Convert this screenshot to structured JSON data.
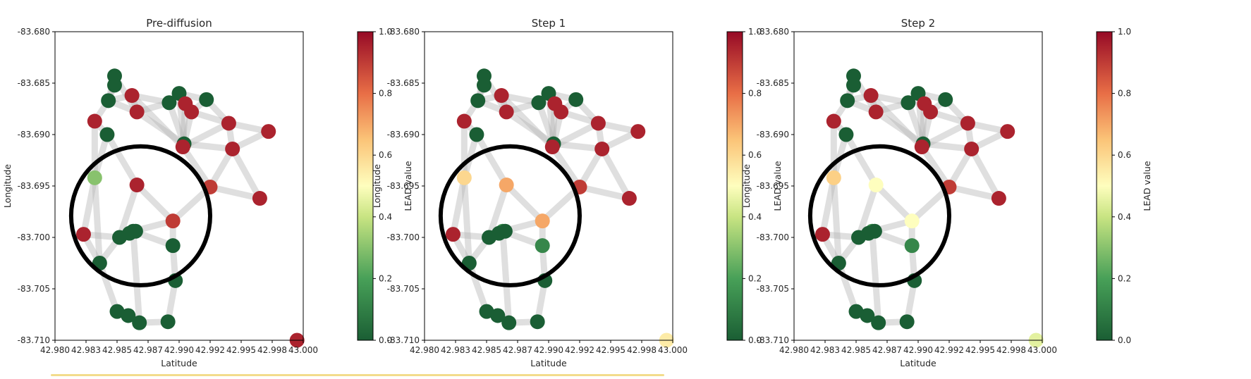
{
  "chart_data": [
    {
      "type": "scatter",
      "title": "Pre-diffusion",
      "xlabel": "Latitude",
      "ylabel": "Longitude",
      "xlim": [
        42.98,
        43.0
      ],
      "ylim": [
        -83.71,
        -83.68
      ],
      "xticks": [
        "42.980",
        "42.983",
        "42.985",
        "42.987",
        "42.990",
        "42.992",
        "42.995",
        "42.998",
        "43.000"
      ],
      "yticks": [
        "-83.680",
        "-83.685",
        "-83.690",
        "-83.695",
        "-83.700",
        "-83.705",
        "-83.710"
      ],
      "colorbar": {
        "label": "LEAD value",
        "range": [
          0.0,
          1.0
        ],
        "ticks": [
          "0.0",
          "0.2",
          "0.4",
          "0.6",
          "0.8",
          "1.0"
        ],
        "colormap": "RdYlGn_r"
      },
      "annotation": "black circle",
      "lead_values": [
        0.0,
        0.0,
        0.0,
        0.0,
        0.95,
        0.95,
        0.95,
        0.0,
        0.0,
        0.0,
        0.95,
        0.95,
        0.0,
        0.95,
        0.95,
        0.95,
        0.95,
        0.95,
        0.3,
        0.95,
        0.9,
        0.9,
        0.95,
        0.0,
        0.0,
        0.0,
        0.0,
        0.0,
        0.0,
        0.0,
        0.0,
        0.0,
        0.0,
        0.0,
        0.95
      ]
    },
    {
      "type": "scatter",
      "title": "Step 1",
      "xlabel": "Latitude",
      "ylabel": "Longitude",
      "xlim": [
        42.98,
        43.0
      ],
      "ylim": [
        -83.71,
        -83.68
      ],
      "xticks": [
        "42.980",
        "42.983",
        "42.985",
        "42.987",
        "42.990",
        "42.992",
        "42.995",
        "42.998",
        "43.000"
      ],
      "yticks": [
        "-83.680",
        "-83.685",
        "-83.690",
        "-83.695",
        "-83.700",
        "-83.705",
        "-83.710"
      ],
      "colorbar": {
        "label": "LEAD value",
        "range": [
          0.0,
          1.0
        ],
        "ticks": [
          "0.0",
          "0.2",
          "0.4",
          "0.6",
          "0.8",
          "1.0"
        ],
        "colormap": "RdYlGn_r"
      },
      "annotation": "black circle",
      "lead_values": [
        0.0,
        0.0,
        0.0,
        0.0,
        0.95,
        0.95,
        0.95,
        0.0,
        0.0,
        0.0,
        0.95,
        0.95,
        0.0,
        0.95,
        0.95,
        0.95,
        0.95,
        0.95,
        0.6,
        0.7,
        0.9,
        0.7,
        0.95,
        0.0,
        0.15,
        0.12,
        0.0,
        0.0,
        0.0,
        0.0,
        0.0,
        0.0,
        0.0,
        0.0,
        0.55
      ]
    },
    {
      "type": "scatter",
      "title": "Step 2",
      "xlabel": "Latitude",
      "ylabel": "Longitude",
      "xlim": [
        42.98,
        43.0
      ],
      "ylim": [
        -83.71,
        -83.68
      ],
      "xticks": [
        "42.980",
        "42.983",
        "42.985",
        "42.987",
        "42.990",
        "42.992",
        "42.995",
        "42.998",
        "43.000"
      ],
      "yticks": [
        "-83.680",
        "-83.685",
        "-83.690",
        "-83.695",
        "-83.700",
        "-83.705",
        "-83.710"
      ],
      "colorbar": {
        "label": "LEAD value",
        "range": [
          0.0,
          1.0
        ],
        "ticks": [
          "0.0",
          "0.2",
          "0.4",
          "0.6",
          "0.8",
          "1.0"
        ],
        "colormap": "RdYlGn_r"
      },
      "annotation": "black circle",
      "lead_values": [
        0.0,
        0.0,
        0.0,
        0.0,
        0.95,
        0.95,
        0.95,
        0.0,
        0.0,
        0.0,
        0.95,
        0.95,
        0.0,
        0.95,
        0.95,
        0.95,
        0.95,
        0.95,
        0.62,
        0.5,
        0.9,
        0.5,
        0.95,
        0.0,
        0.15,
        0.12,
        0.0,
        0.0,
        0.0,
        0.0,
        0.0,
        0.0,
        0.0,
        0.0,
        0.45
      ]
    }
  ],
  "nodes": [
    {
      "x": 42.9848,
      "y": -83.6843
    },
    {
      "x": 42.9848,
      "y": -83.6852
    },
    {
      "x": 42.9843,
      "y": -83.6867
    },
    {
      "x": 42.9892,
      "y": -83.6869
    },
    {
      "x": 42.9862,
      "y": -83.6862
    },
    {
      "x": 42.9866,
      "y": -83.6878
    },
    {
      "x": 42.9832,
      "y": -83.6887
    },
    {
      "x": 42.9842,
      "y": -83.69
    },
    {
      "x": 42.99,
      "y": -83.686
    },
    {
      "x": 42.9922,
      "y": -83.6866
    },
    {
      "x": 42.9905,
      "y": -83.687
    },
    {
      "x": 42.991,
      "y": -83.6878
    },
    {
      "x": 42.9904,
      "y": -83.6909
    },
    {
      "x": 42.9903,
      "y": -83.6912
    },
    {
      "x": 42.994,
      "y": -83.6889
    },
    {
      "x": 42.9943,
      "y": -83.6914
    },
    {
      "x": 42.9972,
      "y": -83.6897
    },
    {
      "x": 42.9965,
      "y": -83.6962
    },
    {
      "x": 42.9832,
      "y": -83.6942
    },
    {
      "x": 42.9866,
      "y": -83.6949
    },
    {
      "x": 42.9925,
      "y": -83.6951
    },
    {
      "x": 42.9895,
      "y": -83.6984
    },
    {
      "x": 42.9823,
      "y": -83.6997
    },
    {
      "x": 42.9852,
      "y": -83.7
    },
    {
      "x": 42.9863,
      "y": -83.6994
    },
    {
      "x": 42.9895,
      "y": -83.7008
    },
    {
      "x": 42.9836,
      "y": -83.7025
    },
    {
      "x": 42.9897,
      "y": -83.7042
    },
    {
      "x": 42.985,
      "y": -83.7072
    },
    {
      "x": 42.9859,
      "y": -83.7076
    },
    {
      "x": 42.9868,
      "y": -83.7083
    },
    {
      "x": 42.9891,
      "y": -83.7082
    },
    {
      "x": 42.9865,
      "y": -83.6994
    },
    {
      "x": 42.986,
      "y": -83.6996
    },
    {
      "x": 42.9995,
      "y": -83.71
    }
  ],
  "edges": [
    [
      0,
      2
    ],
    [
      1,
      2
    ],
    [
      2,
      4
    ],
    [
      2,
      5
    ],
    [
      4,
      5
    ],
    [
      4,
      3
    ],
    [
      3,
      8
    ],
    [
      8,
      9
    ],
    [
      8,
      10
    ],
    [
      10,
      11
    ],
    [
      9,
      11
    ],
    [
      11,
      12
    ],
    [
      12,
      13
    ],
    [
      13,
      14
    ],
    [
      14,
      16
    ],
    [
      14,
      15
    ],
    [
      15,
      16
    ],
    [
      12,
      15
    ],
    [
      11,
      14
    ],
    [
      5,
      3
    ],
    [
      6,
      7
    ],
    [
      2,
      6
    ],
    [
      7,
      18
    ],
    [
      7,
      19
    ],
    [
      19,
      21
    ],
    [
      18,
      22
    ],
    [
      22,
      23
    ],
    [
      23,
      24
    ],
    [
      24,
      21
    ],
    [
      21,
      20
    ],
    [
      20,
      15
    ],
    [
      20,
      17
    ],
    [
      17,
      15
    ],
    [
      24,
      25
    ],
    [
      25,
      21
    ],
    [
      22,
      26
    ],
    [
      26,
      28
    ],
    [
      28,
      29
    ],
    [
      29,
      30
    ],
    [
      30,
      31
    ],
    [
      31,
      27
    ],
    [
      27,
      25
    ],
    [
      26,
      23
    ],
    [
      5,
      12
    ],
    [
      4,
      13
    ],
    [
      3,
      12
    ],
    [
      18,
      26
    ],
    [
      19,
      23
    ],
    [
      24,
      30
    ],
    [
      13,
      20
    ],
    [
      6,
      18
    ],
    [
      0,
      5
    ],
    [
      8,
      12
    ],
    [
      10,
      13
    ],
    [
      9,
      14
    ]
  ],
  "circle": {
    "cx": 42.9869,
    "cy": -83.6979,
    "r_x": 0.0056
  }
}
